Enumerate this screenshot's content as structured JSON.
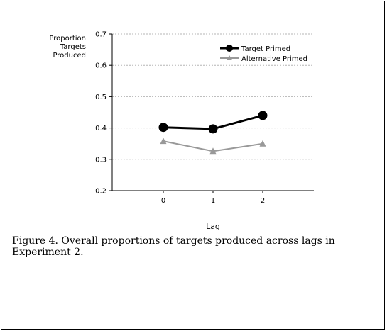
{
  "chart_data": {
    "type": "line",
    "ylabel_lines": [
      "Proportion",
      "Targets",
      "Produced"
    ],
    "xlabel": "Lag",
    "categories": [
      "0",
      "1",
      "2"
    ],
    "ylim": [
      0.2,
      0.7
    ],
    "yticks": [
      "0.2",
      "0.3",
      "0.4",
      "0.5",
      "0.6",
      "0.7"
    ],
    "grid": true,
    "legend_position": "top-right",
    "series": [
      {
        "name": "Target Primed",
        "values": [
          0.402,
          0.397,
          0.44
        ],
        "color": "#000000",
        "marker": "circle"
      },
      {
        "name": "Alternative Primed",
        "values": [
          0.358,
          0.326,
          0.35
        ],
        "color": "#999999",
        "marker": "triangle"
      }
    ]
  },
  "caption": {
    "figure_label": "Figure 4",
    "text": ".  Overall proportions of targets produced across lags in Experiment 2."
  }
}
